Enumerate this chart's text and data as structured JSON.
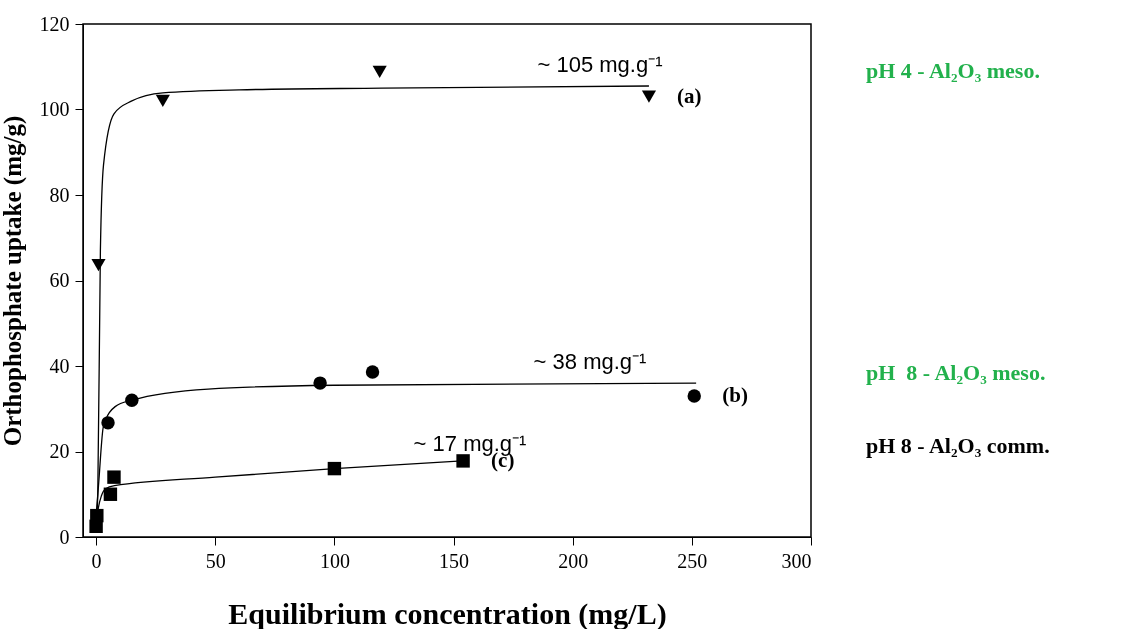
{
  "chart_data": {
    "type": "scatter",
    "xlabel": "Equilibrium concentration (mg/L)",
    "ylabel": "Orthophosphate uptake (mg/g)",
    "xlim": [
      -5.5,
      300
    ],
    "xticks": [
      0,
      50,
      100,
      150,
      200,
      250,
      300
    ],
    "ylim": [
      0,
      120
    ],
    "yticks": [
      0,
      20,
      40,
      60,
      80,
      100,
      120
    ],
    "grid": false,
    "series": [
      {
        "name": "(a)",
        "marker": "triangle",
        "color": "#000000",
        "x": [
          1,
          28,
          119,
          232
        ],
        "values": [
          63.6,
          102,
          108.8,
          103
        ]
      },
      {
        "name": "(b)",
        "marker": "circle",
        "color": "#000000",
        "x": [
          5,
          15,
          94,
          116,
          251
        ],
        "values": [
          26.7,
          32,
          36,
          38.6,
          33
        ]
      },
      {
        "name": "(c)",
        "marker": "square",
        "color": "#000000",
        "x": [
          0,
          0.3,
          6,
          7.5,
          100,
          154
        ],
        "values": [
          2.5,
          5,
          10,
          14,
          16,
          17.8
        ]
      },
      {
        "type": "line",
        "color": "#000000",
        "line_style": "solid",
        "x": [
          0,
          0.7,
          1.8,
          3.1,
          7.5,
          15,
          28,
          60,
          120,
          232
        ],
        "values": [
          3,
          10,
          67,
          87,
          99,
          102,
          103.9,
          104.6,
          105,
          105.5
        ]
      },
      {
        "type": "line",
        "color": "#000000",
        "line_style": "solid",
        "x": [
          0,
          1,
          3.1,
          8,
          15,
          47,
          100,
          251.8
        ],
        "values": [
          5,
          12,
          26,
          30.5,
          32,
          34.6,
          35.5,
          36
        ]
      },
      {
        "type": "line",
        "color": "#000000",
        "line_style": "solid",
        "x": [
          0,
          1,
          2.2,
          4,
          7.7,
          50,
          100,
          154
        ],
        "values": [
          3,
          7,
          9.6,
          11.3,
          12,
          14,
          16,
          17.8
        ]
      }
    ],
    "annotations": [
      "~ 105 mg.g⁻¹",
      "~ 38 mg.g⁻¹",
      "~ 17 mg.g⁻¹",
      "pH 4 - Al₂O₃ meso.",
      "pH  8 - Al₂O₃ meso.",
      "pH 8 - Al₂O₃ comm."
    ]
  }
}
